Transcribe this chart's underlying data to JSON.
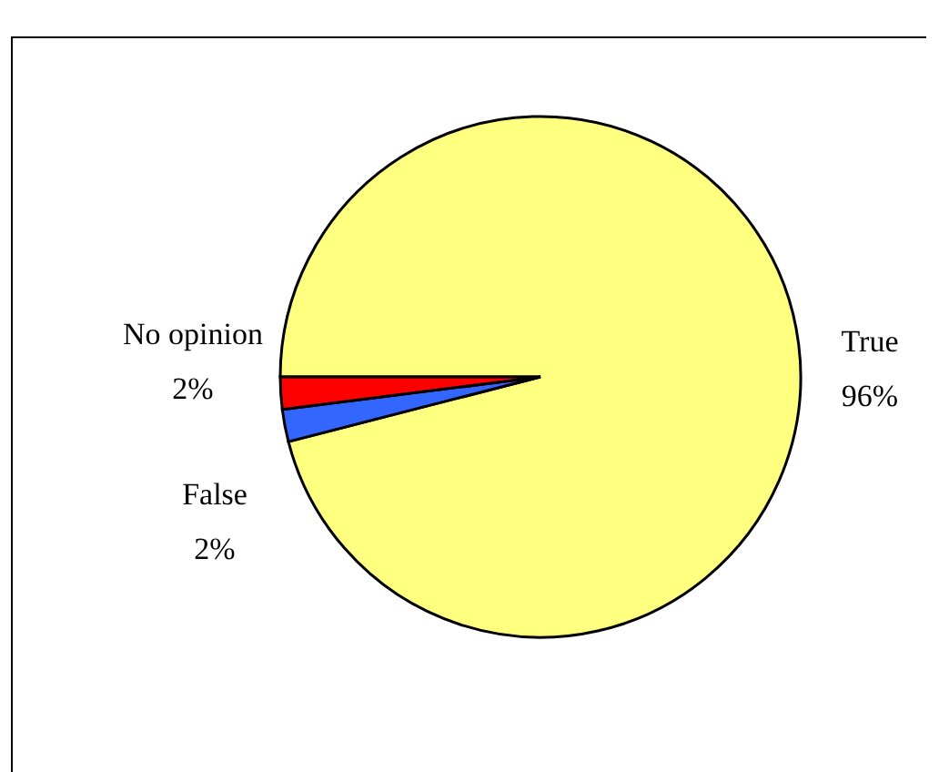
{
  "chart_data": {
    "type": "pie",
    "categories": [
      "True",
      "False",
      "No opinion"
    ],
    "values": [
      96,
      2,
      2
    ],
    "colors": [
      "#ffff80",
      "#3366ff",
      "#ff0000"
    ],
    "value_labels": [
      "96%",
      "2%",
      "2%"
    ]
  }
}
